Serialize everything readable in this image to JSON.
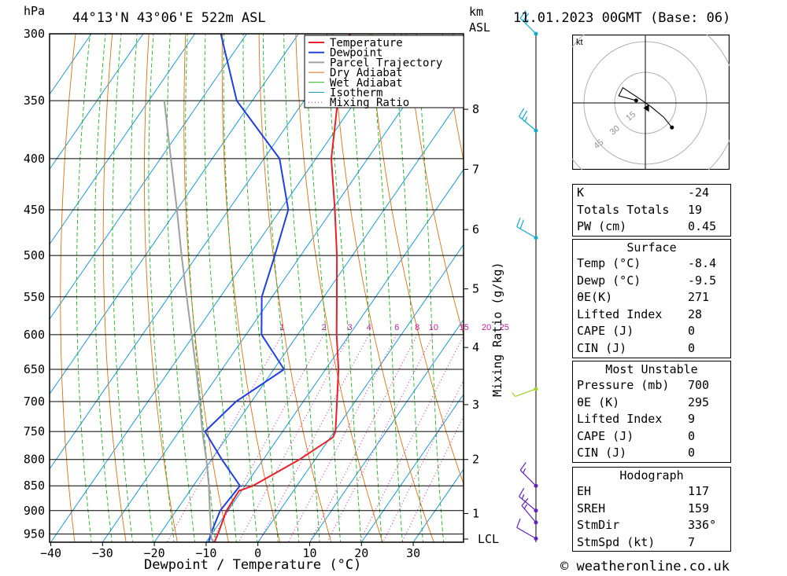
{
  "header": {
    "hpa_label": "hPa",
    "location": "44°13'N  43°06'E  522m  ASL",
    "km_label": "km",
    "asl_label": "ASL",
    "datetime": "11.01.2023  00GMT  (Base: 06)"
  },
  "footer": {
    "copyright": "© weatheronline.co.uk"
  },
  "chart_data": {
    "type": "line",
    "subtype": "skew-T log-P sounding",
    "xlabel": "Dewpoint / Temperature (°C)",
    "ylabel": "hPa",
    "x_ticks": [
      -40,
      -30,
      -20,
      -10,
      0,
      10,
      20,
      30
    ],
    "xlim": [
      -40,
      39
    ],
    "pressure_levels": [
      300,
      350,
      400,
      450,
      500,
      550,
      600,
      650,
      700,
      750,
      800,
      850,
      900,
      950
    ],
    "plim": [
      300,
      968
    ],
    "km_ticks": [
      {
        "p": 357,
        "label": "8"
      },
      {
        "p": 410,
        "label": "7"
      },
      {
        "p": 471,
        "label": "6"
      },
      {
        "p": 540,
        "label": "5"
      },
      {
        "p": 618,
        "label": "4"
      },
      {
        "p": 705,
        "label": "3"
      },
      {
        "p": 800,
        "label": "2"
      },
      {
        "p": 906,
        "label": "1"
      },
      {
        "p": 961,
        "label": "LCL"
      }
    ],
    "mixing_ratio_label": "Mixing Ratio (g/kg)",
    "mixing_ratio_values": [
      "1",
      "2",
      "3",
      "4",
      "6",
      "8",
      "10",
      "15",
      "20",
      "25"
    ],
    "legend": {
      "placement": "top-center",
      "entries": [
        "Temperature",
        "Dewpoint",
        "Parcel Trajectory",
        "Dry Adiabat",
        "Wet Adiabat",
        "Isotherm",
        "Mixing Ratio"
      ]
    },
    "colors": {
      "temperature": "#e8202a",
      "dewpoint": "#2040e0",
      "parcel": "#a0a0a0",
      "dry_adiabat": "#e07010",
      "wet_adiabat": "#20b020",
      "isotherm": "#1a9ad8",
      "mixing_ratio": "#c020a0",
      "wind": "#10a8d0"
    },
    "series": [
      {
        "name": "Temperature",
        "points": [
          {
            "p": 968,
            "t": -8.4
          },
          {
            "p": 950,
            "t": -8.8
          },
          {
            "p": 900,
            "t": -10.3
          },
          {
            "p": 860,
            "t": -10.5
          },
          {
            "p": 850,
            "t": -8.5
          },
          {
            "p": 800,
            "t": -3.0
          },
          {
            "p": 760,
            "t": 0.5
          },
          {
            "p": 750,
            "t": 0.2
          },
          {
            "p": 700,
            "t": -3.5
          },
          {
            "p": 650,
            "t": -7.5
          },
          {
            "p": 600,
            "t": -12.5
          },
          {
            "p": 550,
            "t": -17.5
          },
          {
            "p": 500,
            "t": -23.0
          },
          {
            "p": 450,
            "t": -29.5
          },
          {
            "p": 400,
            "t": -37.0
          },
          {
            "p": 350,
            "t": -43.5
          },
          {
            "p": 300,
            "t": -50.0
          }
        ]
      },
      {
        "name": "Dewpoint",
        "points": [
          {
            "p": 968,
            "t": -9.5
          },
          {
            "p": 950,
            "t": -10.2
          },
          {
            "p": 900,
            "t": -11.5
          },
          {
            "p": 850,
            "t": -11.0
          },
          {
            "p": 800,
            "t": -18.0
          },
          {
            "p": 750,
            "t": -25.0
          },
          {
            "p": 700,
            "t": -23.0
          },
          {
            "p": 650,
            "t": -18.0
          },
          {
            "p": 600,
            "t": -27.0
          },
          {
            "p": 550,
            "t": -32.0
          },
          {
            "p": 500,
            "t": -35.0
          },
          {
            "p": 450,
            "t": -38.5
          },
          {
            "p": 400,
            "t": -47.0
          },
          {
            "p": 350,
            "t": -63.0
          },
          {
            "p": 300,
            "t": -75.0
          }
        ]
      },
      {
        "name": "Parcel Trajectory",
        "points": [
          {
            "p": 968,
            "t": -8.4
          },
          {
            "p": 961,
            "t": -9.4
          },
          {
            "p": 900,
            "t": -13.5
          },
          {
            "p": 850,
            "t": -17.0
          },
          {
            "p": 800,
            "t": -21.0
          },
          {
            "p": 750,
            "t": -25.5
          },
          {
            "p": 700,
            "t": -30.0
          },
          {
            "p": 650,
            "t": -35.0
          },
          {
            "p": 600,
            "t": -40.5
          },
          {
            "p": 550,
            "t": -46.5
          },
          {
            "p": 500,
            "t": -53.0
          },
          {
            "p": 450,
            "t": -60.0
          },
          {
            "p": 400,
            "t": -68.0
          },
          {
            "p": 350,
            "t": -77.0
          }
        ]
      }
    ],
    "wind_barbs": [
      {
        "p": 300,
        "dir": 315,
        "kt": 25
      },
      {
        "p": 375,
        "dir": 310,
        "kt": 25
      },
      {
        "p": 480,
        "dir": 300,
        "kt": 20
      },
      {
        "p": 680,
        "dir": 250,
        "kt": 5
      },
      {
        "p": 850,
        "dir": 315,
        "kt": 15
      },
      {
        "p": 900,
        "dir": 310,
        "kt": 15
      },
      {
        "p": 925,
        "dir": 320,
        "kt": 15
      },
      {
        "p": 960,
        "dir": 300,
        "kt": 10
      }
    ],
    "hodograph": {
      "unit_label": "kt",
      "ring_labels": [
        "15",
        "30",
        "45"
      ],
      "trace": [
        {
          "u": -4.5,
          "v": 1.2
        },
        {
          "u": -13,
          "v": 3.5
        },
        {
          "u": -11,
          "v": 7.5
        },
        {
          "u": -2,
          "v": 1.5
        },
        {
          "u": 3,
          "v": -2
        },
        {
          "u": 9,
          "v": -7
        },
        {
          "u": 13,
          "v": -12
        }
      ],
      "storm_motion": {
        "u": 1,
        "v": -2.5
      }
    }
  },
  "indices": {
    "general": [
      {
        "key": "K",
        "value": "-24"
      },
      {
        "key": "Totals Totals",
        "value": "19"
      },
      {
        "key": "PW (cm)",
        "value": "0.45"
      }
    ],
    "surface": {
      "title": "Surface",
      "rows": [
        {
          "key": "Temp (°C)",
          "value": "-8.4"
        },
        {
          "key": "Dewp (°C)",
          "value": "-9.5"
        },
        {
          "key": "θE(K)",
          "value": "271"
        },
        {
          "key": "Lifted Index",
          "value": "28"
        },
        {
          "key": "CAPE (J)",
          "value": "0"
        },
        {
          "key": "CIN (J)",
          "value": "0"
        }
      ]
    },
    "most_unstable": {
      "title": "Most Unstable",
      "rows": [
        {
          "key": "Pressure (mb)",
          "value": "700"
        },
        {
          "key": "θE (K)",
          "value": "295"
        },
        {
          "key": "Lifted Index",
          "value": "9"
        },
        {
          "key": "CAPE (J)",
          "value": "0"
        },
        {
          "key": "CIN (J)",
          "value": "0"
        }
      ]
    },
    "hodograph": {
      "title": "Hodograph",
      "rows": [
        {
          "key": "EH",
          "value": "117"
        },
        {
          "key": "SREH",
          "value": "159"
        },
        {
          "key": "StmDir",
          "value": "336°"
        },
        {
          "key": "StmSpd (kt)",
          "value": "7"
        }
      ]
    }
  }
}
